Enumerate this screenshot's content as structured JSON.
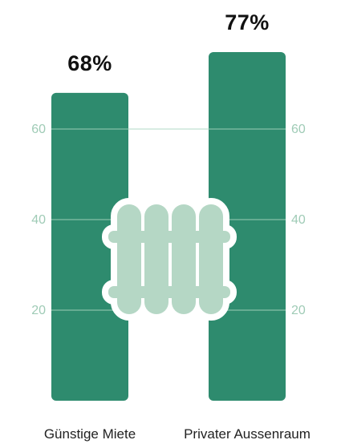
{
  "chart_data": {
    "type": "bar",
    "title": "",
    "xlabel": "",
    "ylabel": "",
    "categories": [
      "Günstige Miete",
      "Privater Aussenraum"
    ],
    "values": [
      68,
      77
    ],
    "value_labels": [
      "68%",
      "77%"
    ],
    "y_ticks": [
      20,
      40,
      60
    ],
    "ylim": [
      0,
      77
    ],
    "grid": true,
    "legend": "none"
  },
  "colors": {
    "bar": "#2e8b6e",
    "tick_text": "#9fcbb6",
    "gridline": "#a8d4bf",
    "fence": "#b5d7c5",
    "fence_outline": "#ffffff"
  },
  "icons": {
    "center": "fence-icon"
  }
}
